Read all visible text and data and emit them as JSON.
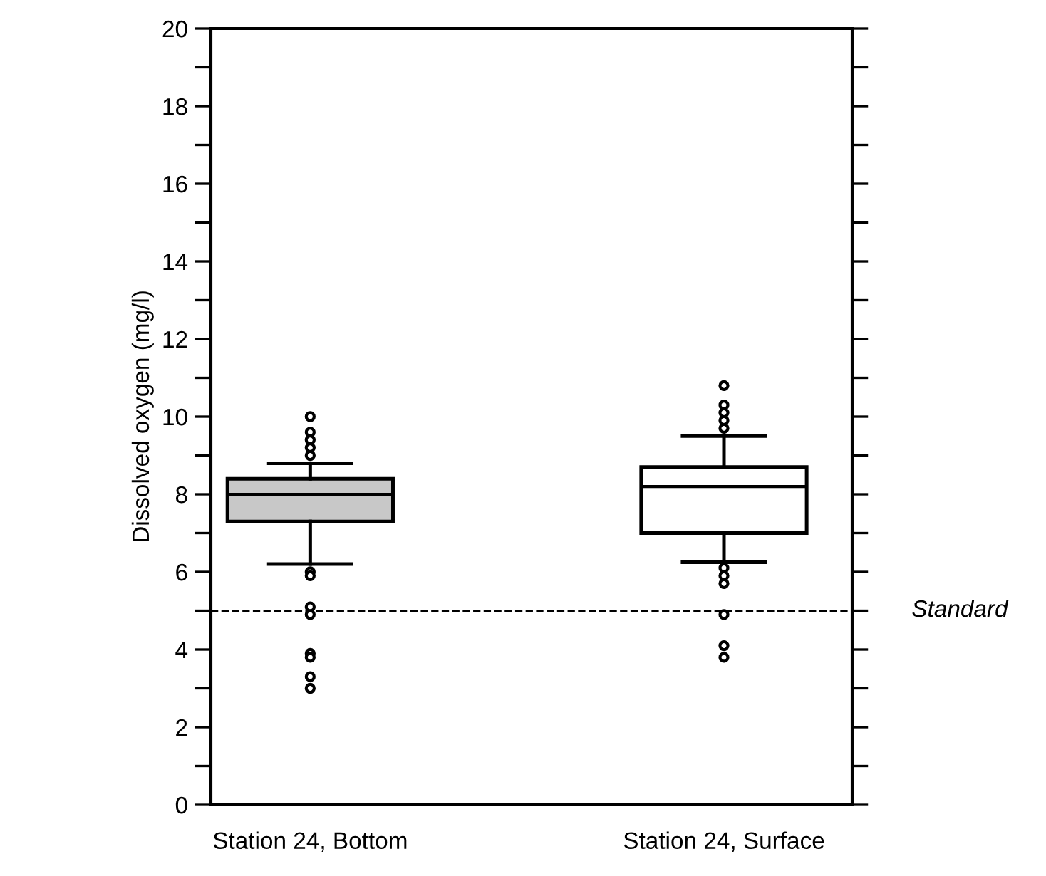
{
  "chart_data": {
    "type": "box",
    "ylabel": "Dissolved oxygen (mg/l)",
    "categories": [
      "Station 24, Bottom",
      "Station 24, Surface"
    ],
    "colors": [
      "#c8c8c8",
      "#ffffff"
    ],
    "boxes": [
      {
        "low": 6.2,
        "q1": 7.3,
        "median": 8.0,
        "q3": 8.4,
        "high": 8.8,
        "outliers": [
          10.0,
          9.6,
          9.4,
          9.2,
          9.0,
          6.0,
          5.9,
          5.1,
          4.9,
          3.9,
          3.8,
          3.3,
          3.0
        ]
      },
      {
        "low": 6.25,
        "q1": 7.0,
        "median": 8.2,
        "q3": 8.7,
        "high": 9.5,
        "outliers": [
          10.8,
          10.3,
          10.1,
          9.9,
          9.7,
          6.1,
          5.9,
          5.7,
          4.9,
          4.1,
          3.8
        ]
      }
    ],
    "ylim": [
      0,
      20
    ],
    "yticks": [
      0,
      {
        "value": 1,
        "label": null
      },
      2,
      {
        "value": 3,
        "label": null
      },
      4,
      {
        "value": 5,
        "label": null
      },
      6,
      {
        "value": 7,
        "label": null
      },
      8,
      {
        "value": 9,
        "label": null
      },
      10,
      {
        "value": 11,
        "label": null
      },
      12,
      {
        "value": 13,
        "label": null
      },
      14,
      {
        "value": 15,
        "label": null
      },
      16,
      {
        "value": 17,
        "label": null
      },
      18,
      {
        "value": 19,
        "label": null
      },
      20
    ],
    "ref_lines": [
      {
        "axis": "y",
        "value": 5,
        "label": "Standard",
        "line_style": "dashed",
        "color": "#000000"
      }
    ],
    "grid": false,
    "legend": false
  }
}
